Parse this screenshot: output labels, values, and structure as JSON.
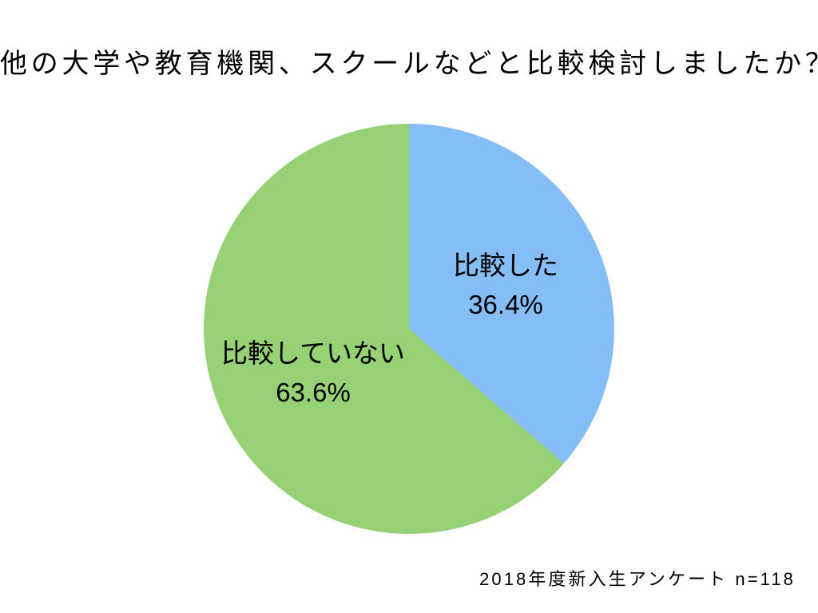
{
  "chart_data": {
    "type": "pie",
    "title": "他の大学や教育機関、スクールなどと比較検討しましたか？",
    "note": "2018年度新入生アンケート n=118",
    "start_angle_deg": 0,
    "direction": "clockwise",
    "legend": "none",
    "slices": [
      {
        "label": "比較した",
        "value": 36.4,
        "pct_label": "36.4%",
        "color": "#85BEF7"
      },
      {
        "label": "比較していない",
        "value": 63.6,
        "pct_label": "63.6%",
        "color": "#97D175"
      }
    ]
  }
}
